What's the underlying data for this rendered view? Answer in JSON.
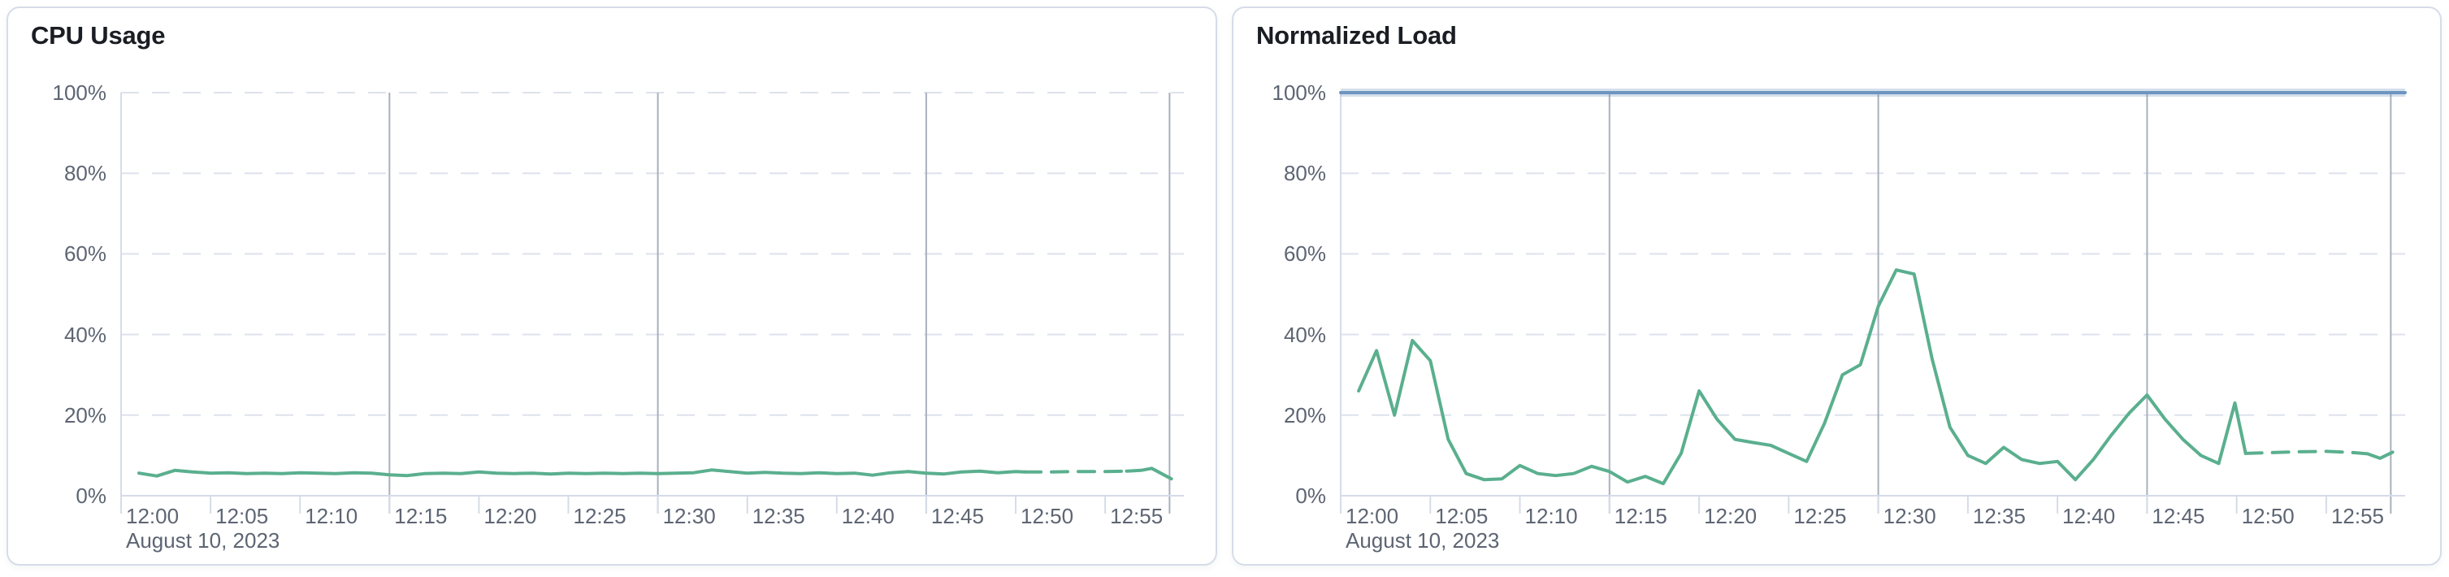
{
  "cards": [
    {
      "title": "CPU Usage"
    },
    {
      "title": "Normalized Load"
    }
  ],
  "chart_data": [
    {
      "type": "line",
      "title": "CPU Usage",
      "xlabel": "",
      "ylabel": "",
      "unit": "%",
      "ylim": [
        0,
        100
      ],
      "x_domain_minutes": [
        0,
        59.4
      ],
      "date_label": "August 10, 2023",
      "grid": "dashed-horizontal",
      "legend": "none",
      "y_ticks": [
        {
          "value": 0,
          "label": "0%"
        },
        {
          "value": 20,
          "label": "20%"
        },
        {
          "value": 40,
          "label": "40%"
        },
        {
          "value": 60,
          "label": "60%"
        },
        {
          "value": 80,
          "label": "80%"
        },
        {
          "value": 100,
          "label": "100%"
        }
      ],
      "x_ticks": [
        {
          "minute": 0,
          "label": "12:00"
        },
        {
          "minute": 5,
          "label": "12:05"
        },
        {
          "minute": 10,
          "label": "12:10"
        },
        {
          "minute": 15,
          "label": "12:15"
        },
        {
          "minute": 20,
          "label": "12:20"
        },
        {
          "minute": 25,
          "label": "12:25"
        },
        {
          "minute": 30,
          "label": "12:30"
        },
        {
          "minute": 35,
          "label": "12:35"
        },
        {
          "minute": 40,
          "label": "12:40"
        },
        {
          "minute": 45,
          "label": "12:45"
        },
        {
          "minute": 50,
          "label": "12:50"
        },
        {
          "minute": 55,
          "label": "12:55"
        }
      ],
      "major_vertical_gridlines_minutes": [
        15,
        30,
        45,
        58.6
      ],
      "series": [
        {
          "name": "CPU Usage",
          "color": "#5aaf8e",
          "halo": false,
          "segments": [
            {
              "style": "solid",
              "points": [
                [
                  1,
                  5.6
                ],
                [
                  2,
                  4.9
                ],
                [
                  3,
                  6.3
                ],
                [
                  4,
                  5.9
                ],
                [
                  5,
                  5.6
                ],
                [
                  6,
                  5.7
                ],
                [
                  7,
                  5.5
                ],
                [
                  8,
                  5.6
                ],
                [
                  9,
                  5.5
                ],
                [
                  10,
                  5.7
                ],
                [
                  11,
                  5.6
                ],
                [
                  12,
                  5.5
                ],
                [
                  13,
                  5.7
                ],
                [
                  14,
                  5.6
                ],
                [
                  15,
                  5.2
                ],
                [
                  16,
                  5.0
                ],
                [
                  17,
                  5.5
                ],
                [
                  18,
                  5.6
                ],
                [
                  19,
                  5.5
                ],
                [
                  20,
                  5.9
                ],
                [
                  21,
                  5.6
                ],
                [
                  22,
                  5.5
                ],
                [
                  23,
                  5.6
                ],
                [
                  24,
                  5.4
                ],
                [
                  25,
                  5.6
                ],
                [
                  26,
                  5.5
                ],
                [
                  27,
                  5.6
                ],
                [
                  28,
                  5.5
                ],
                [
                  29,
                  5.6
                ],
                [
                  30,
                  5.5
                ],
                [
                  31,
                  5.6
                ],
                [
                  32,
                  5.7
                ],
                [
                  33,
                  6.4
                ],
                [
                  34,
                  6.0
                ],
                [
                  35,
                  5.6
                ],
                [
                  36,
                  5.8
                ],
                [
                  37,
                  5.6
                ],
                [
                  38,
                  5.5
                ],
                [
                  39,
                  5.7
                ],
                [
                  40,
                  5.5
                ],
                [
                  41,
                  5.6
                ],
                [
                  42,
                  5.1
                ],
                [
                  43,
                  5.7
                ],
                [
                  44,
                  6.0
                ],
                [
                  45,
                  5.6
                ],
                [
                  46,
                  5.4
                ],
                [
                  47,
                  5.9
                ],
                [
                  48,
                  6.1
                ],
                [
                  49,
                  5.7
                ],
                [
                  50,
                  6.0
                ],
                [
                  50.5,
                  5.9
                ]
              ]
            },
            {
              "style": "dashed",
              "points": [
                [
                  50.5,
                  5.9
                ],
                [
                  52,
                  5.9
                ],
                [
                  53.5,
                  6.0
                ],
                [
                  55,
                  6.0
                ],
                [
                  56.2,
                  6.1
                ]
              ]
            },
            {
              "style": "solid",
              "points": [
                [
                  56.2,
                  6.1
                ],
                [
                  57,
                  6.3
                ],
                [
                  57.6,
                  6.8
                ],
                [
                  58.7,
                  4.2
                ]
              ]
            }
          ]
        }
      ]
    },
    {
      "type": "line",
      "title": "Normalized Load",
      "xlabel": "",
      "ylabel": "",
      "unit": "%",
      "ylim": [
        0,
        100
      ],
      "x_domain_minutes": [
        0,
        59.4
      ],
      "date_label": "August 10, 2023",
      "grid": "dashed-horizontal",
      "legend": "none",
      "y_ticks": [
        {
          "value": 0,
          "label": "0%"
        },
        {
          "value": 20,
          "label": "20%"
        },
        {
          "value": 40,
          "label": "40%"
        },
        {
          "value": 60,
          "label": "60%"
        },
        {
          "value": 80,
          "label": "80%"
        },
        {
          "value": 100,
          "label": "100%"
        }
      ],
      "x_ticks": [
        {
          "minute": 0,
          "label": "12:00"
        },
        {
          "minute": 5,
          "label": "12:05"
        },
        {
          "minute": 10,
          "label": "12:10"
        },
        {
          "minute": 15,
          "label": "12:15"
        },
        {
          "minute": 20,
          "label": "12:20"
        },
        {
          "minute": 25,
          "label": "12:25"
        },
        {
          "minute": 30,
          "label": "12:30"
        },
        {
          "minute": 35,
          "label": "12:35"
        },
        {
          "minute": 40,
          "label": "12:40"
        },
        {
          "minute": 45,
          "label": "12:45"
        },
        {
          "minute": 50,
          "label": "12:50"
        },
        {
          "minute": 55,
          "label": "12:55"
        }
      ],
      "major_vertical_gridlines_minutes": [
        15,
        30,
        45,
        58.6
      ],
      "series": [
        {
          "name": "Normalized Load",
          "color": "#5aaf8e",
          "halo": false,
          "segments": [
            {
              "style": "solid",
              "points": [
                [
                  1,
                  26
                ],
                [
                  2,
                  36
                ],
                [
                  3,
                  20
                ],
                [
                  4,
                  38.5
                ],
                [
                  5,
                  33.5
                ],
                [
                  6,
                  14
                ],
                [
                  7,
                  5.5
                ],
                [
                  8,
                  4
                ],
                [
                  9,
                  4.2
                ],
                [
                  10,
                  7.5
                ],
                [
                  11,
                  5.5
                ],
                [
                  12,
                  5
                ],
                [
                  13,
                  5.5
                ],
                [
                  14,
                  7.3
                ],
                [
                  15,
                  6
                ],
                [
                  16,
                  3.4
                ],
                [
                  17,
                  4.8
                ],
                [
                  18,
                  3
                ],
                [
                  19,
                  10.5
                ],
                [
                  20,
                  26
                ],
                [
                  21,
                  19
                ],
                [
                  22,
                  14
                ],
                [
                  23,
                  13.2
                ],
                [
                  24,
                  12.5
                ],
                [
                  25,
                  10.5
                ],
                [
                  26,
                  8.5
                ],
                [
                  27,
                  18
                ],
                [
                  28,
                  30
                ],
                [
                  29,
                  32.5
                ],
                [
                  30,
                  47
                ],
                [
                  31,
                  56
                ],
                [
                  32,
                  55
                ],
                [
                  33,
                  34
                ],
                [
                  34,
                  17
                ],
                [
                  35,
                  10
                ],
                [
                  36,
                  8
                ],
                [
                  37,
                  12
                ],
                [
                  38,
                  9
                ],
                [
                  39,
                  8
                ],
                [
                  40,
                  8.5
                ],
                [
                  41,
                  4
                ],
                [
                  42,
                  9
                ],
                [
                  43,
                  15
                ],
                [
                  44,
                  20.5
                ],
                [
                  45,
                  25
                ],
                [
                  46,
                  19
                ],
                [
                  47,
                  14
                ],
                [
                  48,
                  10
                ],
                [
                  49,
                  8
                ],
                [
                  49.9,
                  23
                ],
                [
                  50.5,
                  10.5
                ]
              ]
            },
            {
              "style": "dashed",
              "points": [
                [
                  50.5,
                  10.5
                ],
                [
                  52,
                  10.7
                ],
                [
                  53.5,
                  10.9
                ],
                [
                  55,
                  11
                ],
                [
                  56.5,
                  10.7
                ]
              ]
            },
            {
              "style": "solid",
              "points": [
                [
                  56.5,
                  10.7
                ],
                [
                  57.3,
                  10.4
                ],
                [
                  58,
                  9.3
                ],
                [
                  58.7,
                  10.8
                ]
              ]
            }
          ]
        },
        {
          "name": "Limit 100%",
          "color": "#6d95bf",
          "halo": true,
          "segments": [
            {
              "style": "solid",
              "points": [
                [
                  0,
                  100
                ],
                [
                  59.4,
                  100
                ]
              ]
            }
          ]
        }
      ]
    }
  ]
}
